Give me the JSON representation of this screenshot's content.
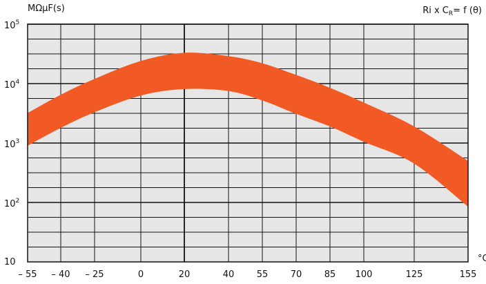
{
  "chart_data": {
    "type": "area",
    "title": "",
    "ylabel": "MΩμF(s)",
    "xlabel": "°C",
    "formula": {
      "prefix": "Ri x C",
      "subscript": "R",
      "suffix": "= f (θ)"
    },
    "y_scale": "log",
    "ylim": [
      10,
      100000
    ],
    "y_ticks": [
      {
        "base": "10",
        "exp": ""
      },
      {
        "base": "10",
        "exp": "2"
      },
      {
        "base": "10",
        "exp": "3"
      },
      {
        "base": "10",
        "exp": "4"
      },
      {
        "base": "10",
        "exp": "5"
      }
    ],
    "x_ticks": [
      "– 55",
      "– 40",
      "– 25",
      "0",
      "20",
      "40",
      "55",
      "70",
      "85",
      "100",
      "125",
      "155"
    ],
    "grid": true,
    "band_color": "#f15a24",
    "band": {
      "x": [
        "– 55",
        "– 40",
        "– 25",
        "0",
        "20",
        "40",
        "55",
        "70",
        "85",
        "100",
        "125",
        "155"
      ],
      "upper": [
        3200,
        6500,
        12000,
        24000,
        33000,
        29000,
        22000,
        14000,
        8500,
        4800,
        1900,
        500
      ],
      "lower": [
        900,
        1800,
        3300,
        6300,
        8100,
        7500,
        5200,
        3100,
        1900,
        1050,
        450,
        85
      ]
    }
  }
}
